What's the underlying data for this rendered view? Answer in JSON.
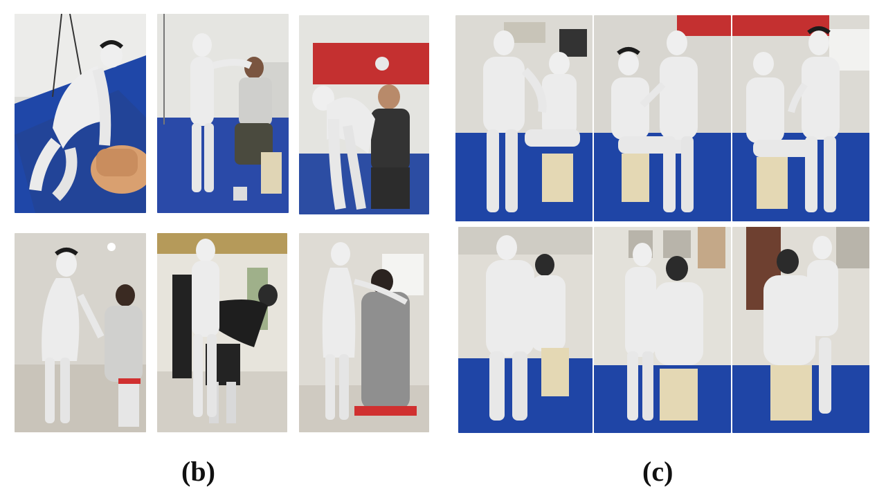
{
  "figure": {
    "groups": [
      {
        "id": "b",
        "caption": "(b)"
      },
      {
        "id": "c",
        "caption": "(c)"
      }
    ],
    "colors": {
      "blue_floor": "#1c3fa0",
      "wall_light": "#e6e6e3",
      "tile_floor": "#cfcac0",
      "mesh_white": "#eeeeee",
      "hair_dark": "#1b1b1b",
      "mannequin_tan": "#d9a070",
      "red_banner": "#c43030",
      "stool_beige": "#e4d8b4"
    }
  }
}
